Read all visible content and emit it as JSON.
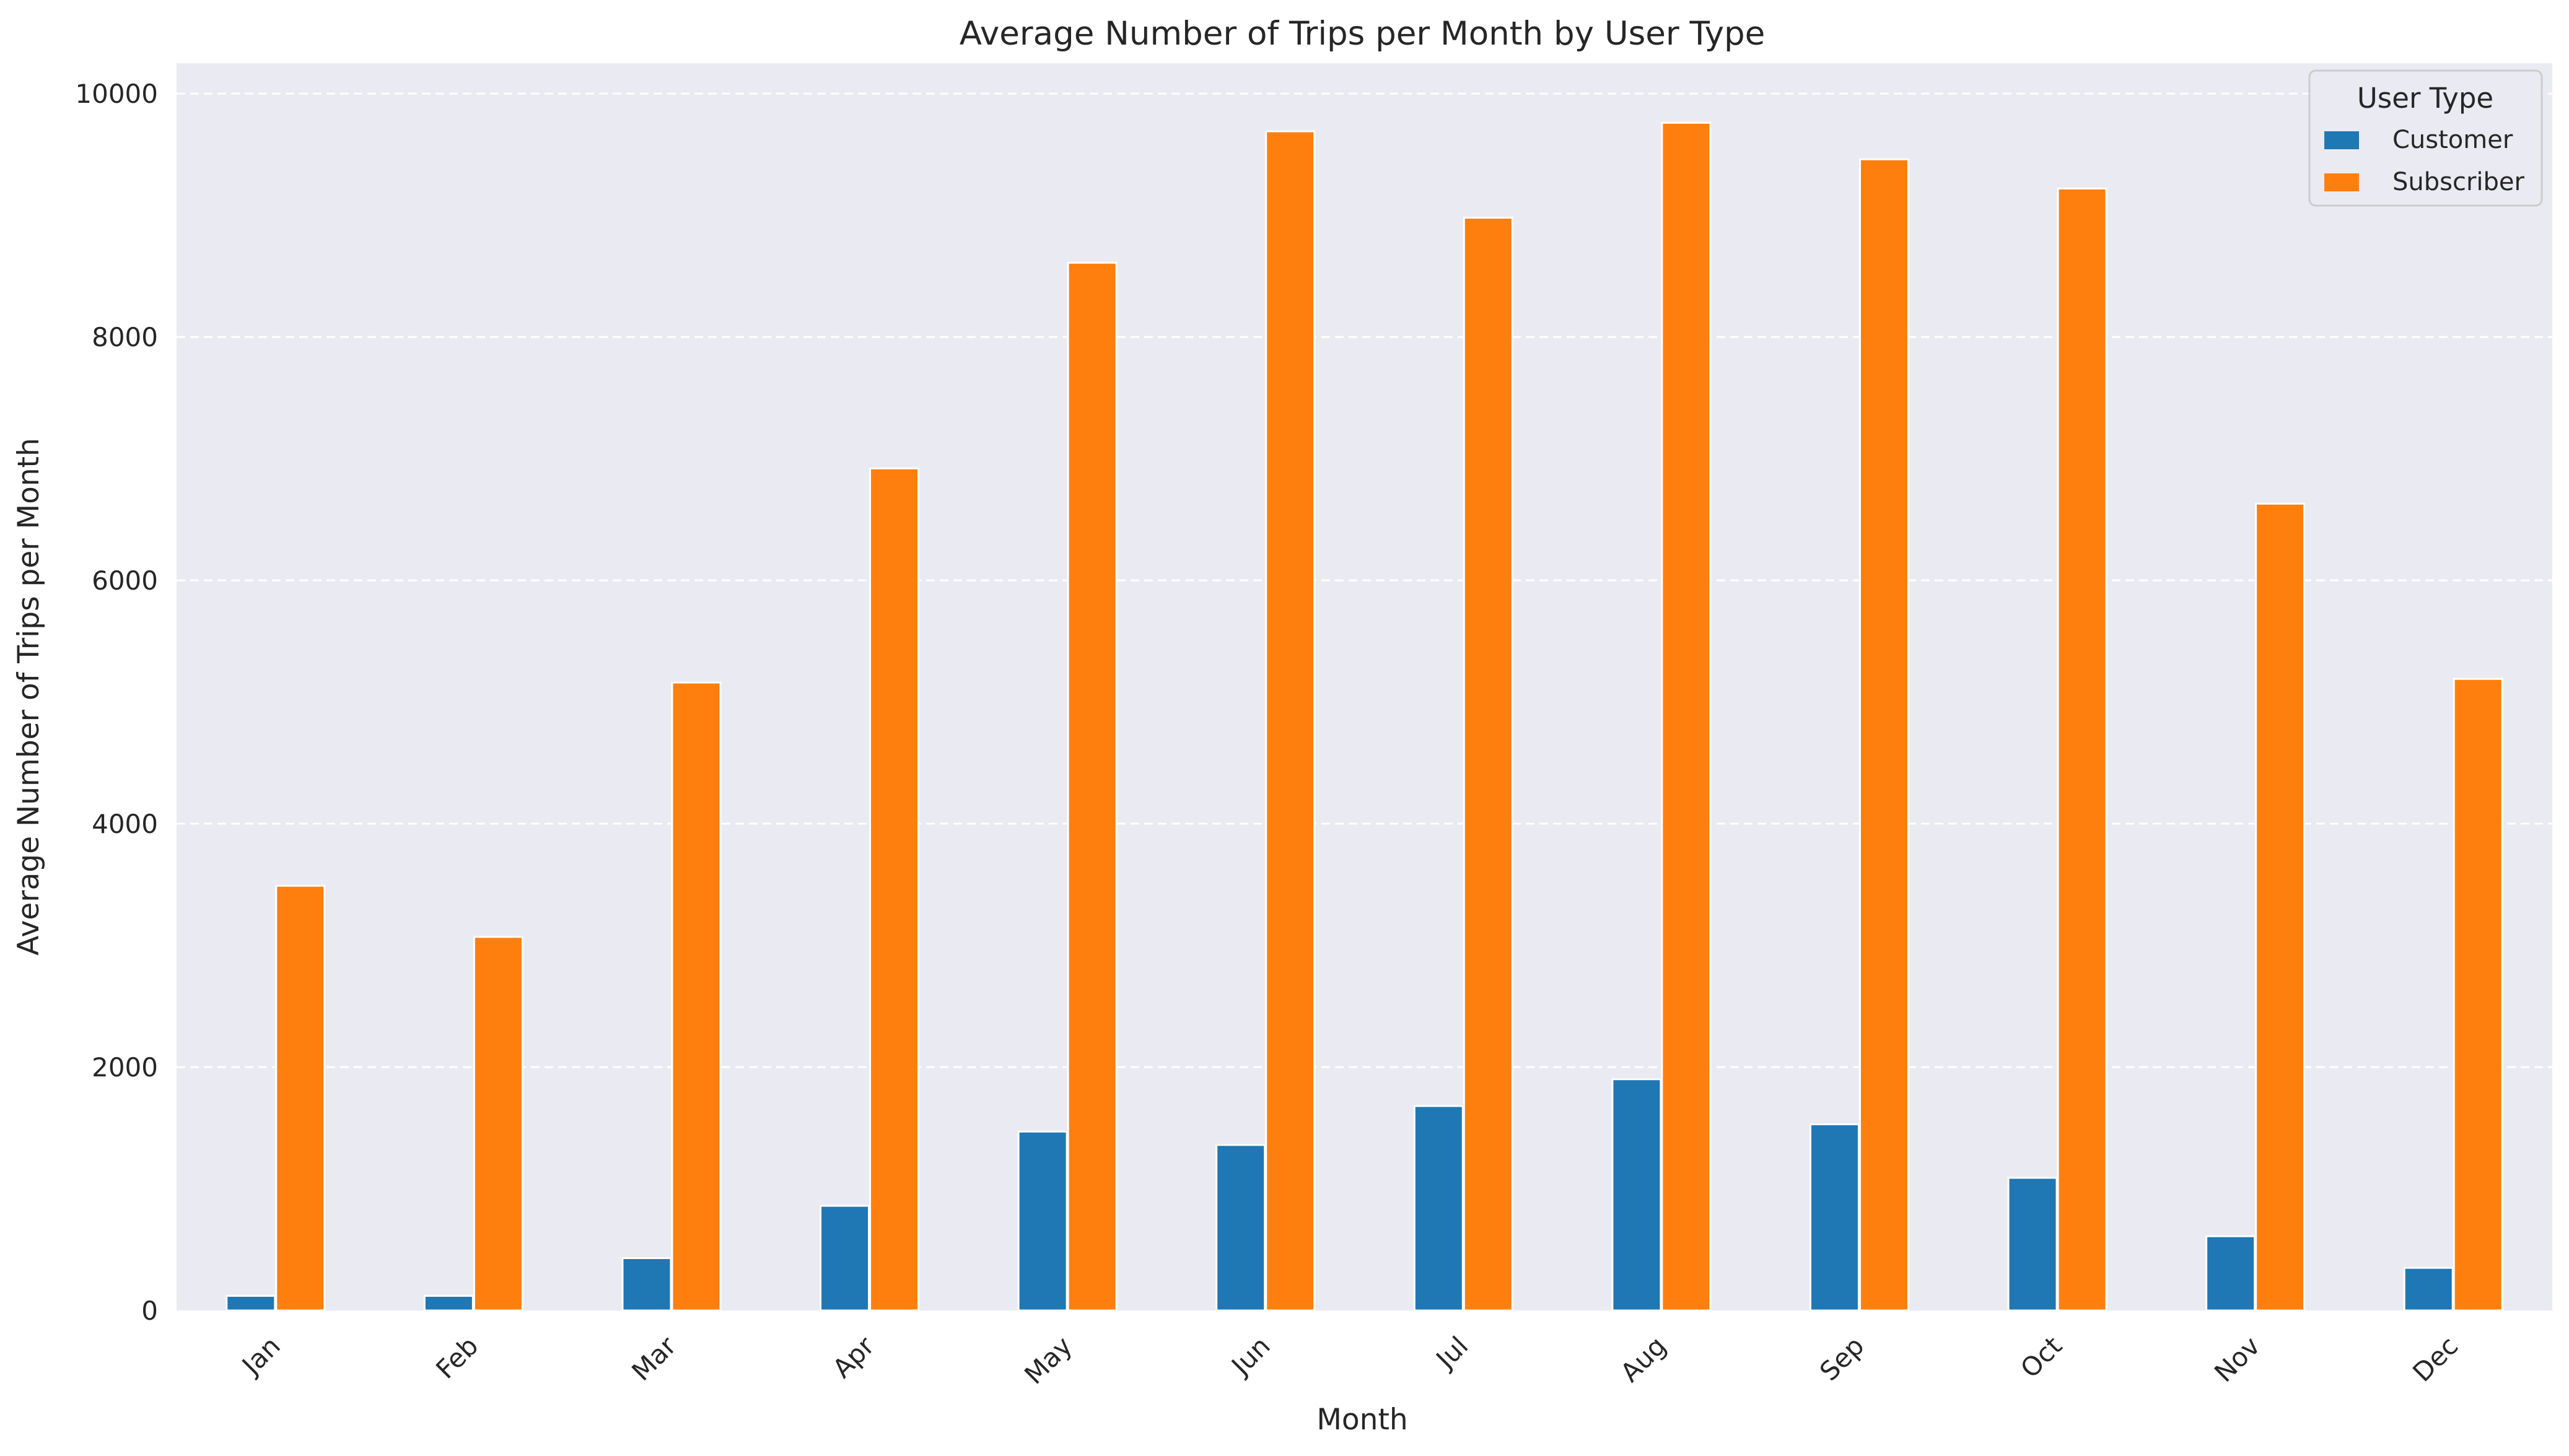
{
  "chart_data": {
    "type": "bar",
    "title": "Average Number of Trips per Month by User Type",
    "xlabel": "Month",
    "ylabel": "Average Number of Trips per Month",
    "categories": [
      "Jan",
      "Feb",
      "Mar",
      "Apr",
      "May",
      "Jun",
      "Jul",
      "Aug",
      "Sep",
      "Oct",
      "Nov",
      "Dec"
    ],
    "series": [
      {
        "name": "Customer",
        "color": "#1f77b4",
        "values": [
          120,
          120,
          430,
          860,
          1470,
          1360,
          1680,
          1900,
          1530,
          1090,
          610,
          350
        ]
      },
      {
        "name": "Subscriber",
        "color": "#ff7f0e",
        "values": [
          3490,
          3070,
          5160,
          6920,
          8610,
          9690,
          8980,
          9760,
          9460,
          9220,
          6630,
          5190
        ]
      }
    ],
    "ylim": [
      0,
      10250
    ],
    "yticks": [
      0,
      2000,
      4000,
      6000,
      8000,
      10000
    ],
    "legend": {
      "title": "User Type",
      "placement": "top-right"
    },
    "grid": "y-dashed",
    "background": "#eaeaf2"
  }
}
